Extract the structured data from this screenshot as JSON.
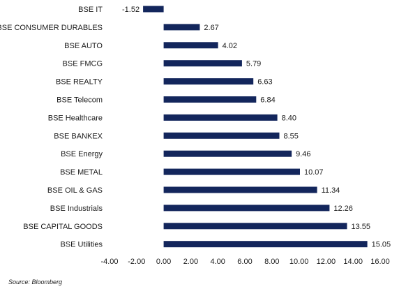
{
  "chart_data": {
    "type": "bar",
    "orientation": "horizontal",
    "categories": [
      "BSE IT",
      "BSE CONSUMER DURABLES",
      "BSE AUTO",
      "BSE FMCG",
      "BSE REALTY",
      "BSE Telecom",
      "BSE Healthcare",
      "BSE BANKEX",
      "BSE Energy",
      "BSE METAL",
      "BSE OIL & GAS",
      "BSE Industrials",
      "BSE CAPITAL GOODS",
      "BSE Utilities"
    ],
    "values": [
      -1.52,
      2.67,
      4.02,
      5.79,
      6.63,
      6.84,
      8.4,
      8.55,
      9.46,
      10.07,
      11.34,
      12.26,
      13.55,
      15.05
    ],
    "value_labels": [
      "-1.52",
      "2.67",
      "4.02",
      "5.79",
      "6.63",
      "6.84",
      "8.40",
      "8.55",
      "9.46",
      "10.07",
      "11.34",
      "12.26",
      "13.55",
      "15.05"
    ],
    "title": "",
    "xlabel": "",
    "ylabel": "",
    "xlim": [
      -4,
      16
    ],
    "x_ticks": [
      "-4.00",
      "-2.00",
      "0.00",
      "2.00",
      "4.00",
      "6.00",
      "8.00",
      "10.00",
      "12.00",
      "14.00",
      "16.00"
    ],
    "x_tick_values": [
      -4,
      -2,
      0,
      2,
      4,
      6,
      8,
      10,
      12,
      14,
      16
    ],
    "grid": false,
    "legend": "none",
    "bar_color": "#13265c"
  },
  "source": "Source: Bloomberg"
}
